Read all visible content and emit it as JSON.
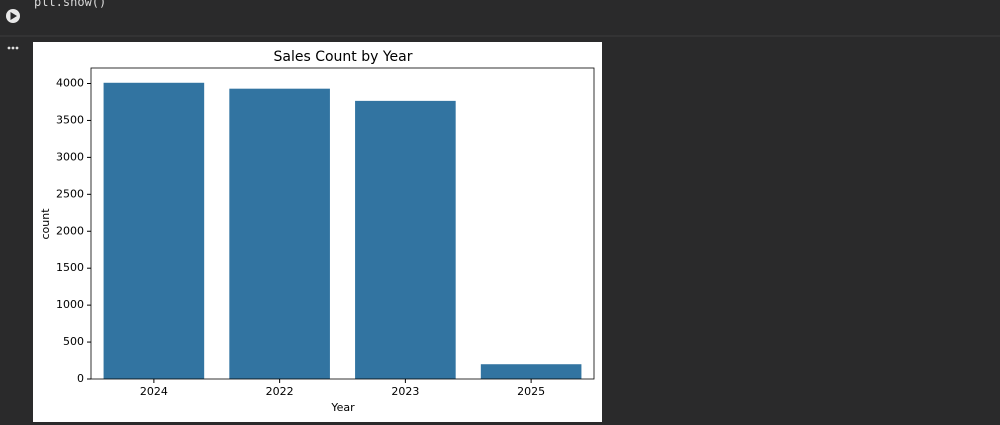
{
  "code": "plt.show()",
  "chart_data": {
    "type": "bar",
    "title": "Sales Count by Year",
    "x_label": "Year",
    "y_label": "count",
    "categories": [
      "2024",
      "2022",
      "2023",
      "2025"
    ],
    "values": [
      4010,
      3930,
      3765,
      200
    ],
    "color": "#3274a1",
    "ylim": [
      0,
      4210
    ],
    "yticks": [
      0,
      500,
      1000,
      1500,
      2000,
      2500,
      3000,
      3500,
      4000
    ]
  }
}
